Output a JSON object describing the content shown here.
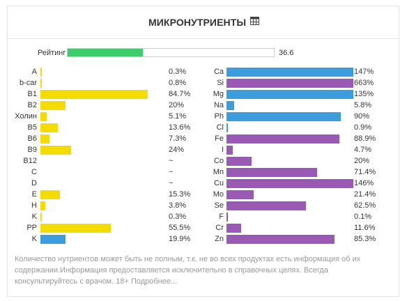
{
  "header": {
    "title": "МИКРОНУТРИЕНТЫ",
    "icon": "table-icon"
  },
  "rating": {
    "label": "Рейтинг",
    "value": "36.6",
    "fill_fraction": 0.366,
    "color": "#3dce6b"
  },
  "colors": {
    "yellow": "#f5dc00",
    "blue": "#3b9ddd",
    "purple": "#9b59b6"
  },
  "left": [
    {
      "label": "A",
      "value": "0.3%",
      "pct": 0.3,
      "color": "yellow"
    },
    {
      "label": "b-car",
      "value": "0.8%",
      "pct": 0.8,
      "color": "yellow"
    },
    {
      "label": "B1",
      "value": "84.7%",
      "pct": 84.7,
      "color": "yellow"
    },
    {
      "label": "B2",
      "value": "20%",
      "pct": 20,
      "color": "yellow"
    },
    {
      "label": "Холин",
      "value": "5.1%",
      "pct": 5.1,
      "color": "yellow"
    },
    {
      "label": "B5",
      "value": "13.6%",
      "pct": 13.6,
      "color": "yellow"
    },
    {
      "label": "B6",
      "value": "7.3%",
      "pct": 7.3,
      "color": "yellow"
    },
    {
      "label": "B9",
      "value": "24%",
      "pct": 24,
      "color": "yellow"
    },
    {
      "label": "B12",
      "value": "~",
      "pct": 0,
      "color": "yellow"
    },
    {
      "label": "C",
      "value": "~",
      "pct": 0,
      "color": "yellow"
    },
    {
      "label": "D",
      "value": "~",
      "pct": 0,
      "color": "yellow"
    },
    {
      "label": "E",
      "value": "15.3%",
      "pct": 15.3,
      "color": "yellow"
    },
    {
      "label": "H",
      "value": "3.8%",
      "pct": 3.8,
      "color": "yellow"
    },
    {
      "label": "K",
      "value": "0.3%",
      "pct": 0.3,
      "color": "yellow"
    },
    {
      "label": "PP",
      "value": "55.5%",
      "pct": 55.5,
      "color": "yellow"
    },
    {
      "label": "K",
      "value": "19.9%",
      "pct": 19.9,
      "color": "blue"
    }
  ],
  "right": [
    {
      "label": "Ca",
      "value": "147%",
      "pct": 147,
      "color": "blue"
    },
    {
      "label": "Si",
      "value": "663%",
      "pct": 663,
      "color": "purple"
    },
    {
      "label": "Mg",
      "value": "135%",
      "pct": 135,
      "color": "blue"
    },
    {
      "label": "Na",
      "value": "5.8%",
      "pct": 5.8,
      "color": "blue"
    },
    {
      "label": "Ph",
      "value": "90%",
      "pct": 90,
      "color": "blue"
    },
    {
      "label": "Cl",
      "value": "0.9%",
      "pct": 0.9,
      "color": "blue"
    },
    {
      "label": "Fe",
      "value": "88.9%",
      "pct": 88.9,
      "color": "purple"
    },
    {
      "label": "I",
      "value": "4.7%",
      "pct": 4.7,
      "color": "purple"
    },
    {
      "label": "Co",
      "value": "20%",
      "pct": 20,
      "color": "purple"
    },
    {
      "label": "Mn",
      "value": "71.4%",
      "pct": 71.4,
      "color": "purple"
    },
    {
      "label": "Cu",
      "value": "146%",
      "pct": 146,
      "color": "purple"
    },
    {
      "label": "Mo",
      "value": "21.4%",
      "pct": 21.4,
      "color": "purple"
    },
    {
      "label": "Se",
      "value": "62.5%",
      "pct": 62.5,
      "color": "purple"
    },
    {
      "label": "F",
      "value": "0.1%",
      "pct": 0.1,
      "color": "purple"
    },
    {
      "label": "Cr",
      "value": "11.6%",
      "pct": 11.6,
      "color": "purple"
    },
    {
      "label": "Zn",
      "value": "85.3%",
      "pct": 85.3,
      "color": "purple"
    }
  ],
  "disclaimer": "Количество нутриентов может быть не полным, т.к. не во всех продуктах есть информация об их содержании.Информация предоставляется исключительно в справочных целях. Всегда консультируйтесь с врачом. 18+ Подробнее..."
}
